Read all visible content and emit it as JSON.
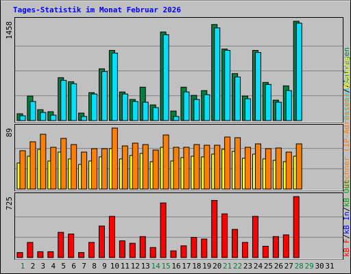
{
  "title": "Tages-Statistik im Monat Februar 2026",
  "legend_separator": "/",
  "chart_data": [
    {
      "type": "bar",
      "ylim": [
        0,
        1458
      ],
      "yticks": [
        1458
      ],
      "series": [
        {
          "name": "Anfragen",
          "color": "#008040",
          "values": [
            100,
            360,
            160,
            130,
            630,
            570,
            110,
            410,
            760,
            1030,
            420,
            310,
            490,
            230,
            1300,
            140,
            490,
            370,
            440,
            1410,
            1050,
            690,
            360,
            1030,
            560,
            300,
            510,
            1458,
            null,
            null,
            null
          ]
        },
        {
          "name": "Dateien",
          "color": "#00e0ff",
          "values": [
            70,
            280,
            120,
            80,
            590,
            540,
            60,
            390,
            720,
            990,
            390,
            280,
            270,
            190,
            1260,
            60,
            420,
            310,
            380,
            1360,
            1030,
            640,
            320,
            1000,
            530,
            270,
            440,
            1430,
            null,
            null,
            null
          ]
        }
      ]
    },
    {
      "type": "bar",
      "ylim": [
        0,
        89
      ],
      "yticks": [
        89
      ],
      "series": [
        {
          "name": "Besuche",
          "color": "#ffff00",
          "values": [
            38,
            48,
            58,
            41,
            54,
            44,
            36,
            41,
            47,
            59,
            44,
            49,
            52,
            40,
            61,
            41,
            46,
            48,
            47,
            51,
            58,
            55,
            45,
            51,
            44,
            42,
            40,
            48,
            null,
            null,
            null
          ]
        },
        {
          "name": "Rechner (IP-Adressen)",
          "color": "#ff8000",
          "values": [
            56,
            69,
            80,
            61,
            74,
            65,
            54,
            59,
            59,
            89,
            63,
            67,
            65,
            57,
            79,
            61,
            61,
            65,
            64,
            64,
            76,
            75,
            61,
            66,
            59,
            60,
            54,
            66,
            null,
            null,
            null
          ]
        }
      ]
    },
    {
      "type": "bar",
      "ylim": [
        0,
        725
      ],
      "yticks": [
        725
      ],
      "series": [
        {
          "name": "kB F",
          "color": "#ff0000",
          "values": [
            60,
            180,
            70,
            70,
            300,
            280,
            60,
            180,
            375,
            490,
            200,
            170,
            250,
            120,
            650,
            80,
            140,
            240,
            220,
            680,
            520,
            335,
            180,
            490,
            135,
            250,
            270,
            725,
            null,
            null,
            null
          ]
        }
      ],
      "extra_legend": [
        {
          "name": "kB In",
          "color": "#0000ff"
        },
        {
          "name": "kB Out",
          "color": "#00a000"
        }
      ],
      "categories": [
        1,
        2,
        3,
        4,
        5,
        6,
        7,
        8,
        9,
        10,
        11,
        12,
        13,
        14,
        15,
        16,
        17,
        18,
        19,
        20,
        21,
        22,
        23,
        24,
        25,
        26,
        27,
        28,
        29,
        30,
        31
      ],
      "highlight": [
        0,
        13,
        14,
        20,
        21,
        27,
        28
      ],
      "highlight_color": "#008040"
    }
  ]
}
